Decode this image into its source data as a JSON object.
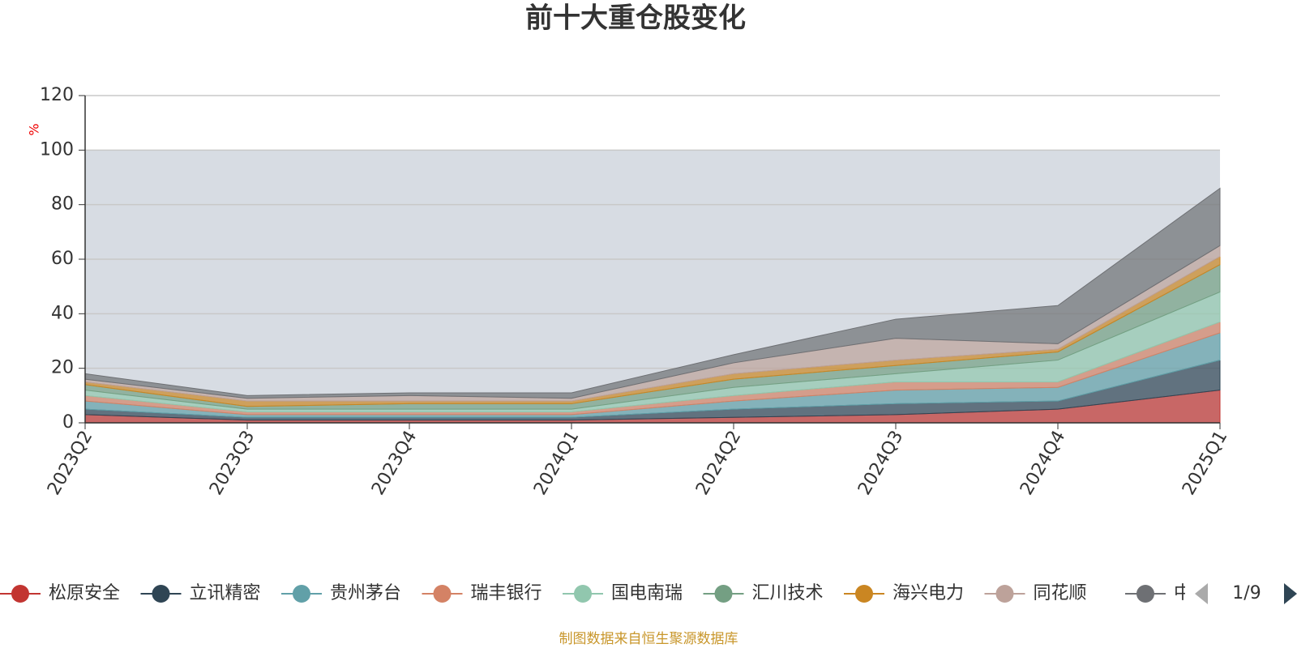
{
  "chart_data": {
    "type": "stacked_area",
    "title": "前十大重仓股变化",
    "y_label": "%",
    "categories": [
      "2023Q2",
      "2023Q3",
      "2023Q4",
      "2024Q1",
      "2024Q2",
      "2024Q3",
      "2024Q4",
      "2025Q1"
    ],
    "series": [
      {
        "name": "松原安全",
        "color": "#c23531",
        "values": [
          3,
          1,
          1,
          1,
          2,
          3,
          5,
          12
        ]
      },
      {
        "name": "立讯精密",
        "color": "#2f4554",
        "values": [
          2,
          1,
          1,
          1,
          3,
          4,
          3,
          11
        ]
      },
      {
        "name": "贵州茅台",
        "color": "#61a0a8",
        "values": [
          3,
          1,
          1,
          1,
          3,
          5,
          5,
          10
        ]
      },
      {
        "name": "瑞丰银行",
        "color": "#d48265",
        "values": [
          2,
          1,
          1,
          1,
          2,
          3,
          2,
          4
        ]
      },
      {
        "name": "国电南瑞",
        "color": "#91c7ae",
        "values": [
          2,
          1,
          1,
          1,
          3,
          3,
          8,
          11
        ]
      },
      {
        "name": "汇川技术",
        "color": "#749f83",
        "values": [
          2,
          1,
          2,
          2,
          3,
          3,
          3,
          10
        ]
      },
      {
        "name": "海兴电力",
        "color": "#ca8622",
        "values": [
          1,
          2,
          1,
          1,
          2,
          2,
          1,
          3
        ]
      },
      {
        "name": "同花顺",
        "color": "#bda29a",
        "values": [
          1,
          1,
          2,
          1,
          4,
          8,
          2,
          4
        ]
      },
      {
        "name": "中",
        "color": "#6e7074",
        "values": [
          2,
          1,
          1,
          2,
          3,
          7,
          14,
          21
        ]
      }
    ],
    "shaded_range": [
      0,
      100
    ],
    "ylim": [
      0,
      120
    ],
    "yticks": [
      0,
      20,
      40,
      60,
      80,
      100,
      120
    ],
    "grid": true,
    "legend_page": "1/9",
    "source": "制图数据来自恒生聚源数据库"
  }
}
